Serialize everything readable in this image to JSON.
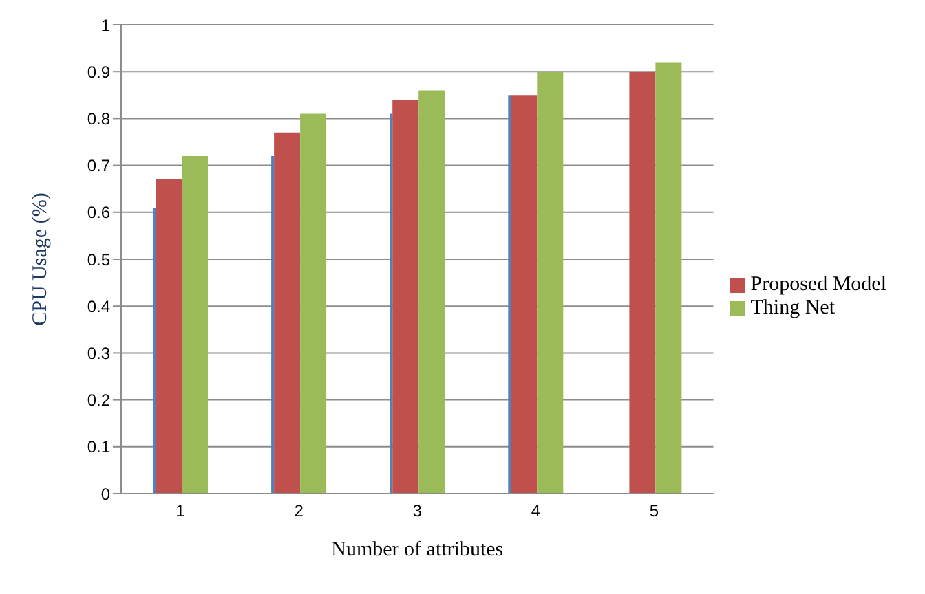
{
  "chart_data": {
    "type": "bar",
    "xlabel": "Number of attributes",
    "ylabel": "CPU Usage (%)",
    "categories": [
      "1",
      "2",
      "3",
      "4",
      "5"
    ],
    "series": [
      {
        "color": "#4f81bd",
        "values": [
          0.61,
          0.72,
          0.81,
          0.85,
          0
        ]
      },
      {
        "name": "Proposed Model",
        "color": "#c0504d",
        "values": [
          0.67,
          0.77,
          0.84,
          0.85,
          0.9
        ]
      },
      {
        "name": "Thing Net",
        "color": "#9bbb59",
        "values": [
          0.72,
          0.81,
          0.86,
          0.9,
          0.92
        ]
      }
    ],
    "ylim": [
      0,
      1
    ],
    "yticks": [
      0,
      0.1,
      0.2,
      0.3,
      0.4,
      0.5,
      0.6,
      0.7,
      0.8,
      0.9,
      1
    ],
    "grid": "y",
    "legend": "right"
  }
}
